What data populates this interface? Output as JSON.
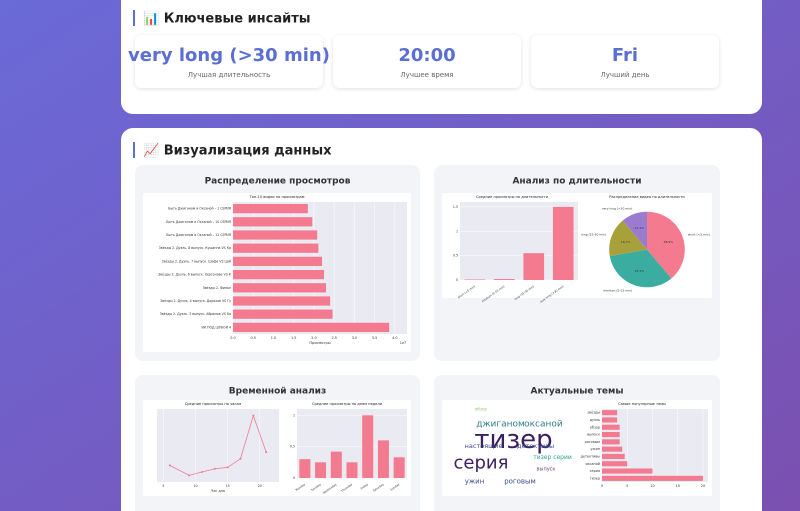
{
  "insights": {
    "title": "📊 Ключевые инсайты",
    "items": [
      {
        "value": "very long (>30 min)",
        "label": "Лучшая длительность"
      },
      {
        "value": "20:00",
        "label": "Лучшее время"
      },
      {
        "value": "Fri",
        "label": "Лучший день"
      }
    ]
  },
  "visualization": {
    "title": "📈 Визуализация данных",
    "panels": [
      {
        "title": "Распределение просмотров",
        "charts": [
          {
            "type": "hbar",
            "title": "Топ-10 видео по просмотрам",
            "xlabel": "Просмотры",
            "x_offset_label": "1e7",
            "color": "#f37a8f",
            "categories": [
              "Быть Джиганом и Оксаной – 1 СЕРИЯ",
              "Быть Джиганом и Оксаной – 10 СЕРИЯ",
              "Быть Джиганом и Оксаной – 12 СЕРИЯ",
              "Звёзды 2. Дуэль. 8 выпуск. Кушанна VS Кр",
              "Звёзды 2. Дуэль. 7 выпуск. Шафа VS Цой",
              "Звёзды 2. Дуэль. 6 выпуск. Херсонова VS К",
              "Звёзды 2. Финал",
              "Звёзды 2. Дуэль. 4 выпуск. Дорохов VS Гу",
              "Звёзды 2. Дуэль. 3 выпуск. Абрамов VS Ба",
              "ИК ПОД ШУБОЙ 4"
            ],
            "values": [
              1.85,
              1.96,
              2.08,
              2.11,
              2.2,
              2.25,
              2.3,
              2.4,
              2.46,
              3.86
            ],
            "xlim": [
              0,
              4.3
            ],
            "xticks": [
              {
                "value": 0,
                "label": "0.0"
              },
              {
                "value": 0.5,
                "label": "0.5"
              },
              {
                "value": 1,
                "label": "1.0"
              },
              {
                "value": 1.5,
                "label": "1.5"
              },
              {
                "value": 2,
                "label": "2.0"
              },
              {
                "value": 2.5,
                "label": "2.5"
              },
              {
                "value": 3,
                "label": "3.0"
              },
              {
                "value": 3.5,
                "label": "3.5"
              },
              {
                "value": 4,
                "label": "4.0"
              }
            ]
          }
        ]
      },
      {
        "title": "Анализ по длительности",
        "charts": [
          {
            "type": "bar",
            "title": "Средние просмотры по длительности",
            "color": "#f37a8f",
            "categories": [
              "short (<5 min)",
              "medium (5-15 min)",
              "long (15-30 min)",
              "very long (>30 min)"
            ],
            "values": [
              0.01,
              0.02,
              0.55,
              1.5
            ],
            "ylim": [
              0,
              1.6
            ],
            "yticks": [
              0,
              0.5,
              1,
              1.5
            ]
          },
          {
            "type": "pie",
            "title": "Распределение видео по длительности",
            "categories": [
              "short (<5 min)",
              "medium (5-15 min)",
              "long (15-30 min)",
              "very long (>30 min)"
            ],
            "values": [
              38.9,
              33.3,
              16.7,
              11.1
            ],
            "value_labels": [
              "38.9%",
              "33.3%",
              "16.7%",
              "11.1%"
            ],
            "colors": [
              "#f37a8f",
              "#3aada0",
              "#a8a03a",
              "#9b7bd0"
            ]
          }
        ]
      },
      {
        "title": "Временной анализ",
        "charts": [
          {
            "type": "line",
            "title": "Средние просмотры по часам",
            "xlabel": "Час дня",
            "color": "#f37a8f",
            "x": [
              6,
              9,
              11,
              13,
              15,
              17,
              19,
              21
            ],
            "values": [
              0.25,
              0.1,
              0.15,
              0.2,
              0.22,
              0.35,
              1.0,
              0.45
            ],
            "xlim": [
              4,
              23
            ],
            "ylim": [
              0,
              1.1
            ],
            "xticks": [
              5,
              10,
              15,
              20
            ]
          },
          {
            "type": "bar",
            "title": "Средние просмотры по дням недели",
            "color": "#f37a8f",
            "categories": [
              "Monday",
              "Tuesday",
              "Wednesday",
              "Thursday",
              "Friday",
              "Saturday",
              "Sunday"
            ],
            "values": [
              0.3,
              0.25,
              0.42,
              0.25,
              1.0,
              0.6,
              0.33
            ],
            "ylim": [
              0,
              1.1
            ],
            "yticks": [
              0,
              0.5,
              1
            ]
          }
        ]
      },
      {
        "title": "Актуальные темы",
        "charts": [
          {
            "type": "wordcloud",
            "words": [
              "тизер",
              "серия",
              "джиганом",
              "оксаной",
              "настоящие",
              "детективы",
              "ужин",
              "роговым",
              "выпуск",
              "обзор",
              "тизер серии"
            ]
          },
          {
            "type": "hbar",
            "title": "Самые популярные темы",
            "color": "#f37a8f",
            "categories": [
              "звёзды",
              "дуэль",
              "обзор",
              "выпуск",
              "роговым",
              "ужин",
              "детективы",
              "оксаной",
              "серия",
              "тизер"
            ],
            "values": [
              3,
              3,
              3.5,
              3.5,
              3.5,
              4,
              4.5,
              5,
              10,
              20
            ],
            "xlim": [
              0,
              21
            ],
            "xticks": [
              0,
              5,
              10,
              15,
              20
            ]
          }
        ]
      }
    ]
  }
}
